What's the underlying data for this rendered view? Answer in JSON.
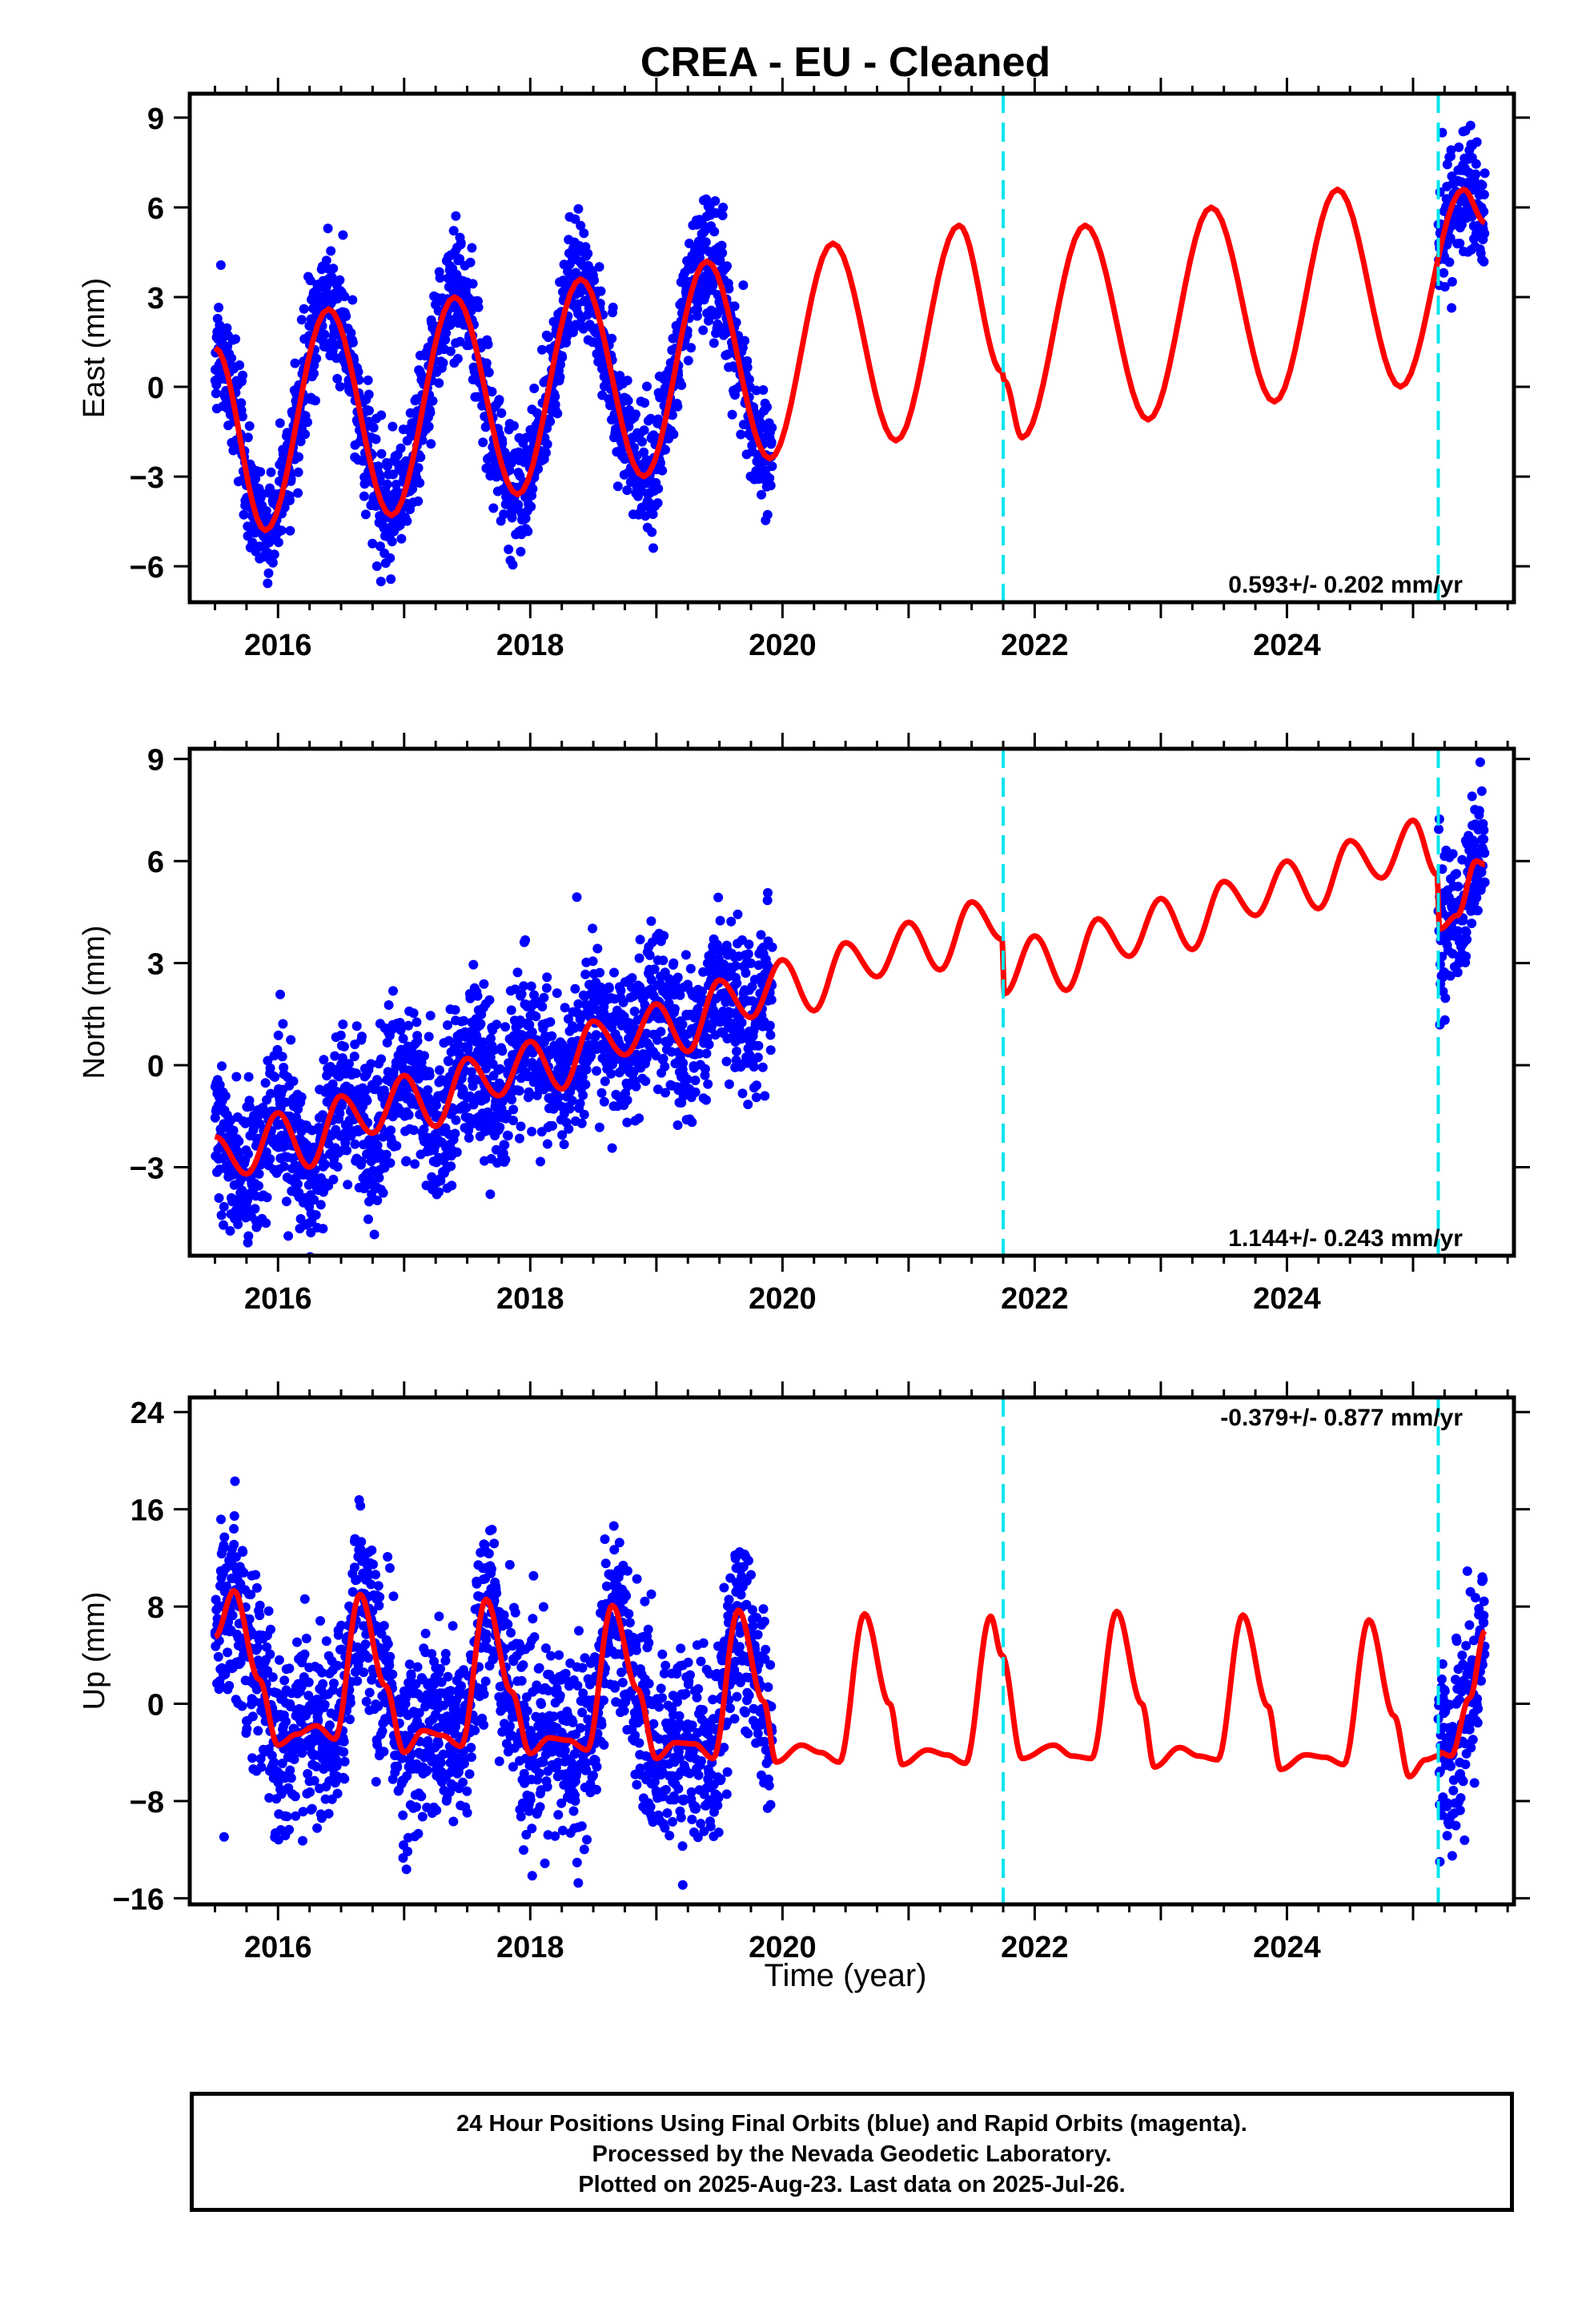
{
  "title": "CREA  - EU - Cleaned",
  "xlabel": "Time (year)",
  "footer": [
    "24 Hour Positions Using Final Orbits (blue) and Rapid Orbits (magenta).",
    "Processed by the Nevada Geodetic Laboratory.",
    "Plotted on 2025-Aug-23. Last data on 2025-Jul-26."
  ],
  "colors": {
    "data": "#0000ff",
    "model": "#ff0000",
    "break": "#00e5ee"
  },
  "chart_data": [
    {
      "type": "scatter",
      "ylabel": "East (mm)",
      "rate_label": "0.593+/- 0.202 mm/yr",
      "xlim": [
        2015.3,
        2025.8
      ],
      "ylim": [
        -7.2,
        9.8
      ],
      "xticks": [
        2016,
        2018,
        2020,
        2022,
        2024
      ],
      "yticks": [
        9,
        6,
        3,
        0,
        -3,
        -6
      ],
      "ytick_labels": [
        "9",
        "6",
        "3",
        "0",
        "−3",
        "−6"
      ],
      "breaks": [
        2021.75,
        2025.2
      ],
      "data_segments": [
        [
          2015.5,
          2019.92
        ],
        [
          2025.2,
          2025.57
        ]
      ],
      "model": {
        "trend_rate": 0.593,
        "model_points": [
          [
            2015.5,
            1.3
          ],
          [
            2015.9,
            -4.8
          ],
          [
            2016.4,
            2.6
          ],
          [
            2016.9,
            -4.3
          ],
          [
            2017.4,
            3.0
          ],
          [
            2017.9,
            -3.6
          ],
          [
            2018.4,
            3.6
          ],
          [
            2018.9,
            -3.0
          ],
          [
            2019.4,
            4.2
          ],
          [
            2019.9,
            -2.4
          ],
          [
            2020.4,
            4.8
          ],
          [
            2020.9,
            -1.8
          ],
          [
            2021.4,
            5.4
          ],
          [
            2021.74,
            0.5
          ],
          [
            2021.76,
            0.2
          ],
          [
            2021.9,
            -1.7
          ],
          [
            2022.4,
            5.4
          ],
          [
            2022.9,
            -1.1
          ],
          [
            2023.4,
            6.0
          ],
          [
            2023.9,
            -0.5
          ],
          [
            2024.4,
            6.6
          ],
          [
            2024.9,
            0.0
          ],
          [
            2025.4,
            6.6
          ],
          [
            2025.57,
            5.5
          ]
        ]
      },
      "scatter": {
        "amplitude": 3.6,
        "phase_peak": 2016.4,
        "noise": 1.0,
        "offset_at_2015_5": 1.3
      }
    },
    {
      "type": "scatter",
      "ylabel": "North (mm)",
      "rate_label": "1.144+/- 0.243 mm/yr",
      "xlim": [
        2015.3,
        2025.8
      ],
      "ylim": [
        -5.6,
        9.3
      ],
      "xticks": [
        2016,
        2018,
        2020,
        2022,
        2024
      ],
      "yticks": [
        9,
        6,
        3,
        0,
        -3
      ],
      "ytick_labels": [
        "9",
        "6",
        "3",
        "0",
        "−3"
      ],
      "breaks": [
        2021.75,
        2025.2
      ],
      "data_segments": [
        [
          2015.5,
          2019.92
        ],
        [
          2025.2,
          2025.57
        ]
      ],
      "model": {
        "trend_rate": 1.144,
        "model_points": [
          [
            2015.5,
            -2.1
          ],
          [
            2015.75,
            -3.2
          ],
          [
            2016.0,
            -1.4
          ],
          [
            2016.25,
            -3.0
          ],
          [
            2016.5,
            -0.9
          ],
          [
            2016.75,
            -2.0
          ],
          [
            2017.0,
            -0.3
          ],
          [
            2017.25,
            -1.8
          ],
          [
            2017.5,
            0.2
          ],
          [
            2017.75,
            -0.9
          ],
          [
            2018.0,
            0.7
          ],
          [
            2018.25,
            -0.7
          ],
          [
            2018.5,
            1.3
          ],
          [
            2018.75,
            0.3
          ],
          [
            2019.0,
            1.8
          ],
          [
            2019.25,
            0.4
          ],
          [
            2019.5,
            2.5
          ],
          [
            2019.75,
            1.4
          ],
          [
            2020.0,
            3.1
          ],
          [
            2020.25,
            1.6
          ],
          [
            2020.5,
            3.6
          ],
          [
            2020.75,
            2.6
          ],
          [
            2021.0,
            4.2
          ],
          [
            2021.25,
            2.8
          ],
          [
            2021.5,
            4.8
          ],
          [
            2021.74,
            3.7
          ],
          [
            2021.76,
            2.1
          ],
          [
            2022.0,
            3.8
          ],
          [
            2022.25,
            2.2
          ],
          [
            2022.5,
            4.3
          ],
          [
            2022.75,
            3.2
          ],
          [
            2023.0,
            4.9
          ],
          [
            2023.25,
            3.4
          ],
          [
            2023.5,
            5.4
          ],
          [
            2023.75,
            4.4
          ],
          [
            2024.0,
            6.0
          ],
          [
            2024.25,
            4.6
          ],
          [
            2024.5,
            6.6
          ],
          [
            2024.75,
            5.5
          ],
          [
            2025.0,
            7.2
          ],
          [
            2025.19,
            5.6
          ],
          [
            2025.21,
            4.0
          ],
          [
            2025.35,
            4.4
          ],
          [
            2025.5,
            6.0
          ],
          [
            2025.57,
            5.9
          ]
        ]
      },
      "scatter": {
        "noise": 1.1
      }
    },
    {
      "type": "scatter",
      "ylabel": "Up (mm)",
      "rate_label": "-0.379+/- 0.877 mm/yr",
      "xlim": [
        2015.3,
        2025.8
      ],
      "ylim": [
        -16.5,
        25.2
      ],
      "xticks": [
        2016,
        2018,
        2020,
        2022,
        2024
      ],
      "yticks": [
        24,
        16,
        8,
        0,
        -8,
        -16
      ],
      "ytick_labels": [
        "24",
        "16",
        "8",
        "0",
        "−8",
        "−16"
      ],
      "breaks": [
        2021.75,
        2025.2
      ],
      "data_segments": [
        [
          2015.5,
          2019.92
        ],
        [
          2025.2,
          2025.57
        ]
      ],
      "model": {
        "trend_rate": -0.379,
        "model_points": [
          [
            2015.5,
            5.5
          ],
          [
            2015.65,
            9.3
          ],
          [
            2015.85,
            2.0
          ],
          [
            2016.0,
            -3.4
          ],
          [
            2016.15,
            -2.5
          ],
          [
            2016.3,
            -1.8
          ],
          [
            2016.45,
            -2.9
          ],
          [
            2016.65,
            9.0
          ],
          [
            2016.85,
            1.5
          ],
          [
            2017.0,
            -4.0
          ],
          [
            2017.15,
            -2.2
          ],
          [
            2017.3,
            -2.6
          ],
          [
            2017.45,
            -3.5
          ],
          [
            2017.65,
            8.6
          ],
          [
            2017.85,
            1.0
          ],
          [
            2018.0,
            -4.1
          ],
          [
            2018.15,
            -2.8
          ],
          [
            2018.3,
            -3.0
          ],
          [
            2018.45,
            -3.8
          ],
          [
            2018.65,
            8.1
          ],
          [
            2018.85,
            1.2
          ],
          [
            2019.0,
            -4.5
          ],
          [
            2019.15,
            -3.2
          ],
          [
            2019.3,
            -3.3
          ],
          [
            2019.45,
            -4.5
          ],
          [
            2019.65,
            7.7
          ],
          [
            2019.85,
            0.2
          ],
          [
            2019.95,
            -4.8
          ],
          [
            2020.15,
            -3.4
          ],
          [
            2020.3,
            -4.0
          ],
          [
            2020.45,
            -4.8
          ],
          [
            2020.65,
            7.4
          ],
          [
            2020.85,
            0.0
          ],
          [
            2020.95,
            -5.0
          ],
          [
            2021.15,
            -3.8
          ],
          [
            2021.3,
            -4.2
          ],
          [
            2021.45,
            -4.9
          ],
          [
            2021.65,
            7.2
          ],
          [
            2021.74,
            4.0
          ],
          [
            2021.9,
            -4.5
          ],
          [
            2022.15,
            -3.4
          ],
          [
            2022.3,
            -4.3
          ],
          [
            2022.45,
            -4.5
          ],
          [
            2022.65,
            7.6
          ],
          [
            2022.85,
            0.0
          ],
          [
            2022.95,
            -5.2
          ],
          [
            2023.15,
            -3.6
          ],
          [
            2023.3,
            -4.3
          ],
          [
            2023.45,
            -4.6
          ],
          [
            2023.65,
            7.3
          ],
          [
            2023.85,
            -0.2
          ],
          [
            2023.95,
            -5.4
          ],
          [
            2024.15,
            -4.2
          ],
          [
            2024.3,
            -4.4
          ],
          [
            2024.45,
            -5.0
          ],
          [
            2024.65,
            6.9
          ],
          [
            2024.85,
            -1.0
          ],
          [
            2024.97,
            -6.0
          ],
          [
            2025.1,
            -4.6
          ],
          [
            2025.2,
            -4.3
          ],
          [
            2025.21,
            -4.0
          ],
          [
            2025.3,
            -4.3
          ],
          [
            2025.45,
            0.5
          ],
          [
            2025.57,
            6.0
          ]
        ]
      },
      "scatter": {
        "noise": 3.8
      }
    }
  ]
}
